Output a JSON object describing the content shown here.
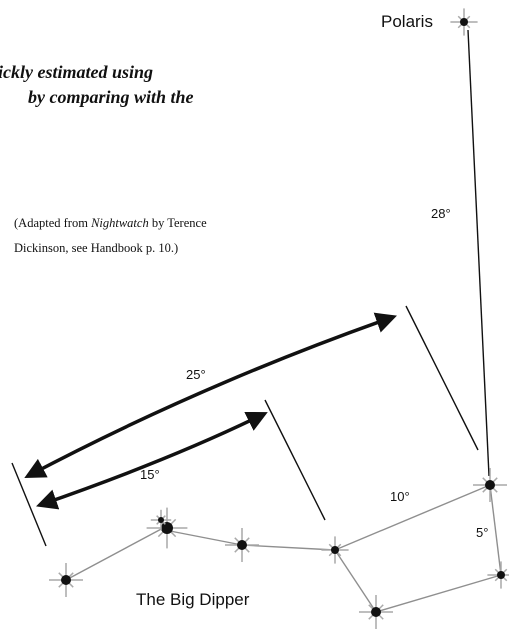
{
  "labels": {
    "polaris": "Polaris",
    "big_dipper": "The Big Dipper"
  },
  "intro_text": {
    "line1": "ickly estimated using",
    "line2": "by comparing with the"
  },
  "credit": {
    "prefix": "(Adapted from ",
    "book": "Nightwatch",
    "suffix": " by Terence",
    "line2": "Dickinson, see Handbook p. 10.)"
  },
  "angles": {
    "pointer_to_polaris": "28°",
    "wide_span": "25°",
    "narrow_span": "15°",
    "bowl_top": "10°",
    "pointer_stars": "5°"
  },
  "colors": {
    "ink": "#111111",
    "star_glow": "#a9a9a9"
  },
  "icons": {
    "star": "star-icon",
    "arrow": "double-arrow"
  }
}
